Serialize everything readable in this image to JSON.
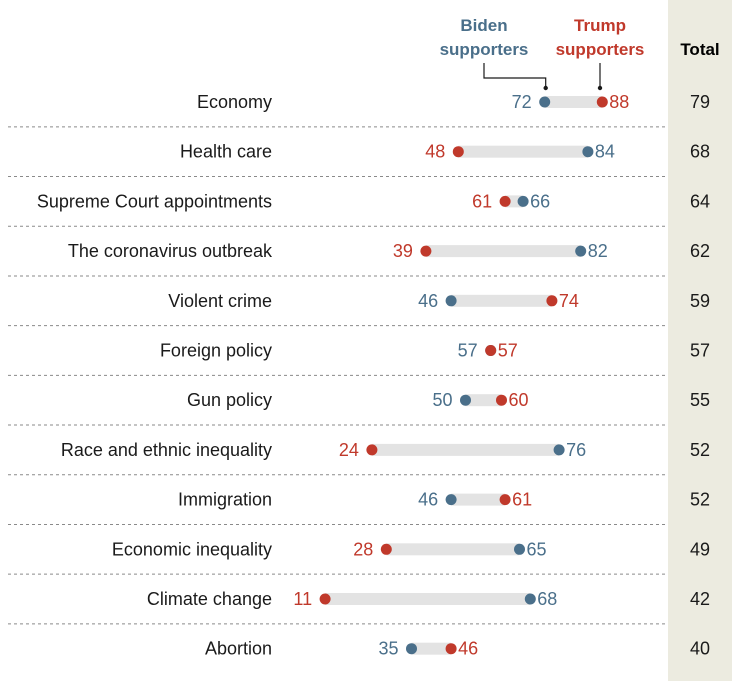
{
  "chart_data": {
    "type": "dot",
    "legend": {
      "biden": [
        "Biden",
        "supporters"
      ],
      "trump": [
        "Trump",
        "supporters"
      ]
    },
    "total_header": "Total",
    "colors": {
      "biden": "#4a6f8a",
      "trump": "#c0392b",
      "bar": "#e3e3e3",
      "total_bg": "#ecebe0"
    },
    "categories": [
      "Economy",
      "Health care",
      "Supreme Court appointments",
      "The coronavirus outbreak",
      "Violent crime",
      "Foreign policy",
      "Gun policy",
      "Race and ethnic inequality",
      "Immigration",
      "Economic inequality",
      "Climate change",
      "Abortion"
    ],
    "series": [
      {
        "name": "Biden supporters",
        "values": [
          72,
          84,
          66,
          82,
          46,
          57,
          50,
          76,
          46,
          65,
          68,
          35
        ]
      },
      {
        "name": "Trump supporters",
        "values": [
          88,
          48,
          61,
          39,
          74,
          57,
          60,
          24,
          61,
          28,
          11,
          46
        ]
      }
    ],
    "totals": [
      79,
      68,
      64,
      62,
      59,
      57,
      55,
      52,
      52,
      49,
      42,
      40
    ],
    "xlim": [
      0,
      100
    ]
  }
}
